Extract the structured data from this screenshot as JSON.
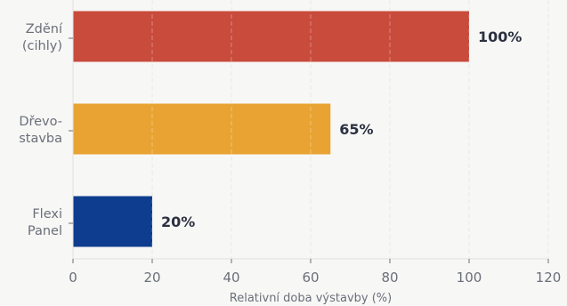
{
  "chart_data": {
    "type": "bar",
    "orientation": "horizontal",
    "categories": [
      [
        "Zdění",
        "(cihly)"
      ],
      [
        "Dřevo-",
        "stavba"
      ],
      [
        "Flexi",
        "Panel"
      ]
    ],
    "values": [
      100,
      65,
      20
    ],
    "value_labels": [
      "100%",
      "65%",
      "20%"
    ],
    "colors": [
      "#c84b3c",
      "#e9a333",
      "#0e3d8f"
    ],
    "xlabel": "Relativní doba výstavby (%)",
    "ylabel": "",
    "title": "",
    "xlim": [
      0,
      120
    ],
    "xticks": [
      0,
      20,
      40,
      60,
      80,
      100,
      120
    ],
    "xtick_labels": [
      "0",
      "20",
      "40",
      "60",
      "80",
      "100",
      "120"
    ],
    "grid": "vertical dashed",
    "legend": "none"
  }
}
